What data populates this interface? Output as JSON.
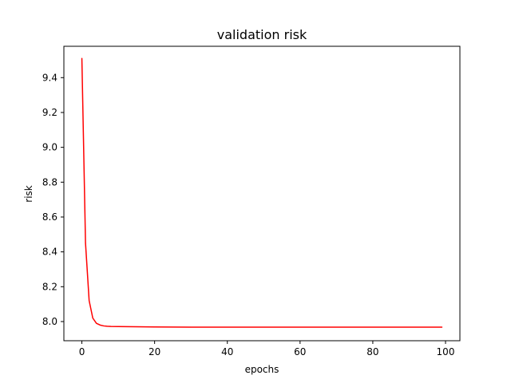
{
  "chart_data": {
    "type": "line",
    "title": "validation risk",
    "xlabel": "epochs",
    "ylabel": "risk",
    "xlim": [
      -4.95,
      103.95
    ],
    "ylim": [
      7.89,
      9.58
    ],
    "xticks": [
      0,
      20,
      40,
      60,
      80,
      100
    ],
    "xtick_labels": [
      "0",
      "20",
      "40",
      "60",
      "80",
      "100"
    ],
    "yticks": [
      8.0,
      8.2,
      8.4,
      8.6,
      8.8,
      9.0,
      9.2,
      9.4
    ],
    "ytick_labels": [
      "8.0",
      "8.2",
      "8.4",
      "8.6",
      "8.8",
      "9.0",
      "9.2",
      "9.4"
    ],
    "grid": false,
    "colors": {
      "line": "#ff0000"
    },
    "series": [
      {
        "x": [
          0,
          1,
          2,
          3,
          4,
          5,
          6,
          7,
          8,
          10,
          15,
          20,
          30,
          40,
          50,
          60,
          70,
          80,
          90,
          99
        ],
        "y": [
          9.51,
          8.45,
          8.12,
          8.02,
          7.99,
          7.98,
          7.975,
          7.973,
          7.972,
          7.971,
          7.97,
          7.969,
          7.968,
          7.968,
          7.968,
          7.968,
          7.968,
          7.968,
          7.968,
          7.968
        ]
      }
    ]
  }
}
